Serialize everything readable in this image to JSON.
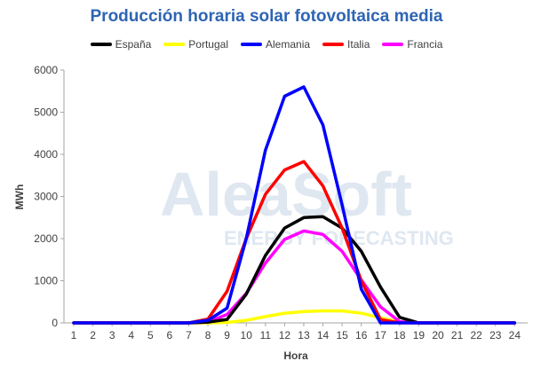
{
  "watermark": {
    "brand": "AleaSoft",
    "tagline": "ENERGY FORECASTING"
  },
  "chart_data": {
    "type": "line",
    "title": "Producción horaria solar fotovoltaica media",
    "xlabel": "Hora",
    "ylabel": "MWh",
    "x": [
      1,
      2,
      3,
      4,
      5,
      6,
      7,
      8,
      9,
      10,
      11,
      12,
      13,
      14,
      15,
      16,
      17,
      18,
      19,
      20,
      21,
      22,
      23,
      24
    ],
    "ylim": [
      0,
      6000
    ],
    "yticks": [
      0,
      1000,
      2000,
      3000,
      4000,
      5000,
      6000
    ],
    "grid": false,
    "legend_position": "top",
    "series": [
      {
        "name": "España",
        "color": "#000000",
        "values": [
          0,
          0,
          0,
          0,
          0,
          0,
          0,
          20,
          80,
          680,
          1600,
          2250,
          2500,
          2520,
          2250,
          1700,
          850,
          130,
          0,
          0,
          0,
          0,
          0,
          0
        ]
      },
      {
        "name": "Portugal",
        "color": "#ffff00",
        "values": [
          0,
          0,
          0,
          0,
          0,
          0,
          0,
          0,
          10,
          60,
          150,
          230,
          270,
          285,
          285,
          230,
          120,
          20,
          0,
          0,
          0,
          0,
          0,
          0
        ]
      },
      {
        "name": "Alemania",
        "color": "#0000ff",
        "values": [
          0,
          0,
          0,
          0,
          0,
          0,
          0,
          60,
          350,
          2000,
          4100,
          5380,
          5600,
          4700,
          2800,
          800,
          0,
          0,
          0,
          0,
          0,
          0,
          0,
          0
        ]
      },
      {
        "name": "Italia",
        "color": "#ff0000",
        "values": [
          0,
          0,
          0,
          0,
          0,
          0,
          0,
          90,
          750,
          2000,
          3050,
          3630,
          3830,
          3250,
          2250,
          1000,
          80,
          0,
          0,
          0,
          0,
          0,
          0,
          0
        ]
      },
      {
        "name": "Francia",
        "color": "#ff00ff",
        "values": [
          0,
          0,
          0,
          0,
          0,
          0,
          0,
          20,
          200,
          700,
          1420,
          1980,
          2180,
          2100,
          1700,
          1020,
          380,
          30,
          0,
          0,
          0,
          0,
          0,
          0
        ]
      }
    ]
  }
}
